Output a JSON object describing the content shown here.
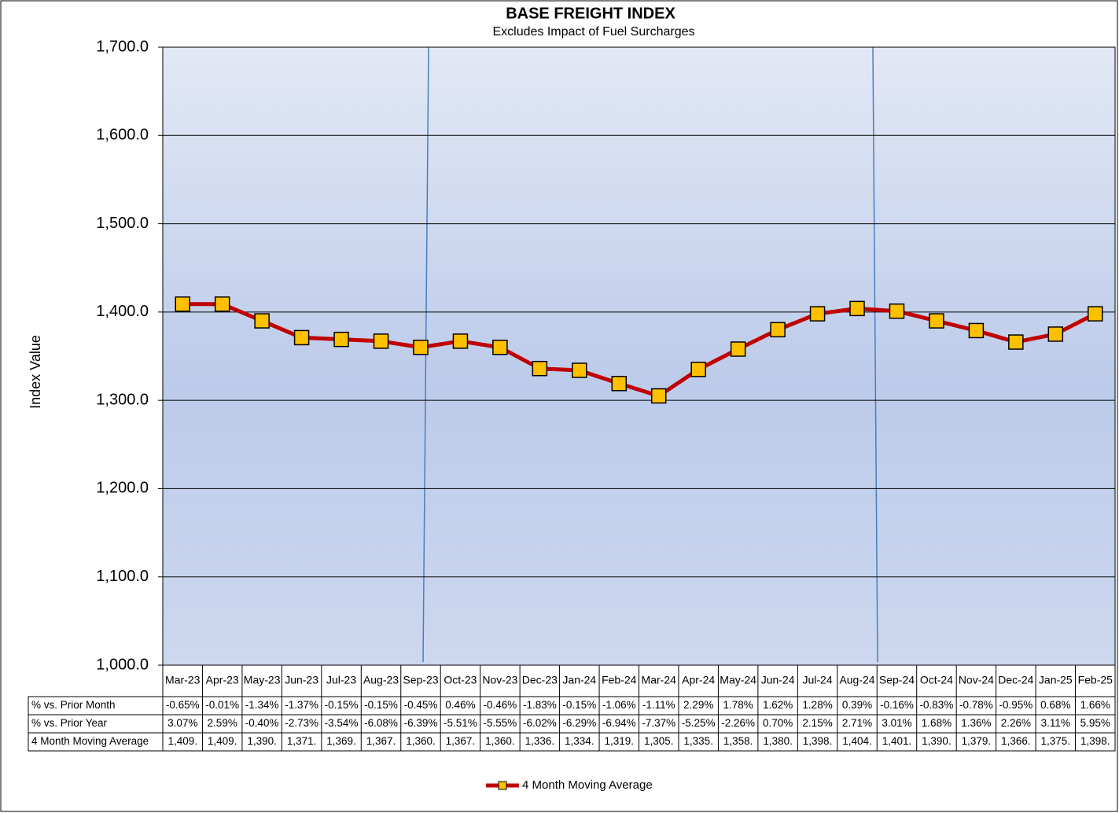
{
  "chart_data": {
    "type": "line",
    "title": "BASE FREIGHT INDEX",
    "subtitle": "Excludes Impact of Fuel Surcharges",
    "y_label": "Index Value",
    "categories": [
      "Mar-23",
      "Apr-23",
      "May-23",
      "Jun-23",
      "Jul-23",
      "Aug-23",
      "Sep-23",
      "Oct-23",
      "Nov-23",
      "Dec-23",
      "Jan-24",
      "Feb-24",
      "Mar-24",
      "Apr-24",
      "May-24",
      "Jun-24",
      "Jul-24",
      "Aug-24",
      "Sep-24",
      "Oct-24",
      "Nov-24",
      "Dec-24",
      "Jan-25",
      "Feb-25"
    ],
    "series": [
      {
        "name": "4 Month Moving Average",
        "color": "#c00000",
        "marker_color": "#ffc000",
        "values": [
          1409,
          1409,
          1390,
          1371,
          1369,
          1367,
          1360,
          1367,
          1360,
          1336,
          1334,
          1319,
          1305,
          1335,
          1358,
          1380,
          1398,
          1404,
          1401,
          1390,
          1379,
          1366,
          1375,
          1398
        ],
        "value_labels": [
          "1,409.",
          "1,409.",
          "1,390.",
          "1,371.",
          "1,369.",
          "1,367.",
          "1,360.",
          "1,367.",
          "1,360.",
          "1,336.",
          "1,334.",
          "1,319.",
          "1,305.",
          "1,335.",
          "1,358.",
          "1,380.",
          "1,398.",
          "1,404.",
          "1,401.",
          "1,390.",
          "1,379.",
          "1,366.",
          "1,375.",
          "1,398."
        ]
      }
    ],
    "ylim": [
      1000,
      1700
    ],
    "yticks": [
      {
        "value": 1000,
        "label": "1,000.0"
      },
      {
        "value": 1100,
        "label": "1,100.0"
      },
      {
        "value": 1200,
        "label": "1,200.0"
      },
      {
        "value": 1300,
        "label": "1,300.0"
      },
      {
        "value": 1400,
        "label": "1,400.0"
      },
      {
        "value": 1500,
        "label": "1,500.0"
      },
      {
        "value": 1600,
        "label": "1,600.0"
      },
      {
        "value": 1700,
        "label": "1,700.0"
      }
    ],
    "grid": true,
    "table_rows": [
      {
        "name": "% vs. Prior Month",
        "cells": [
          "-0.65%",
          "-0.01%",
          "-1.34%",
          "-1.37%",
          "-0.15%",
          "-0.15%",
          "-0.45%",
          "0.46%",
          "-0.46%",
          "-1.83%",
          "-0.15%",
          "-1.06%",
          "-1.11%",
          "2.29%",
          "1.78%",
          "1.62%",
          "1.28%",
          "0.39%",
          "-0.16%",
          "-0.83%",
          "-0.78%",
          "-0.95%",
          "0.68%",
          "1.66%"
        ]
      },
      {
        "name": "% vs. Prior Year",
        "cells": [
          "3.07%",
          "2.59%",
          "-0.40%",
          "-2.73%",
          "-3.54%",
          "-6.08%",
          "-6.39%",
          "-5.51%",
          "-5.55%",
          "-6.02%",
          "-6.29%",
          "-6.94%",
          "-7.37%",
          "-5.25%",
          "-2.26%",
          "0.70%",
          "2.15%",
          "2.71%",
          "3.01%",
          "1.68%",
          "1.36%",
          "2.26%",
          "3.11%",
          "5.95%"
        ]
      }
    ]
  }
}
